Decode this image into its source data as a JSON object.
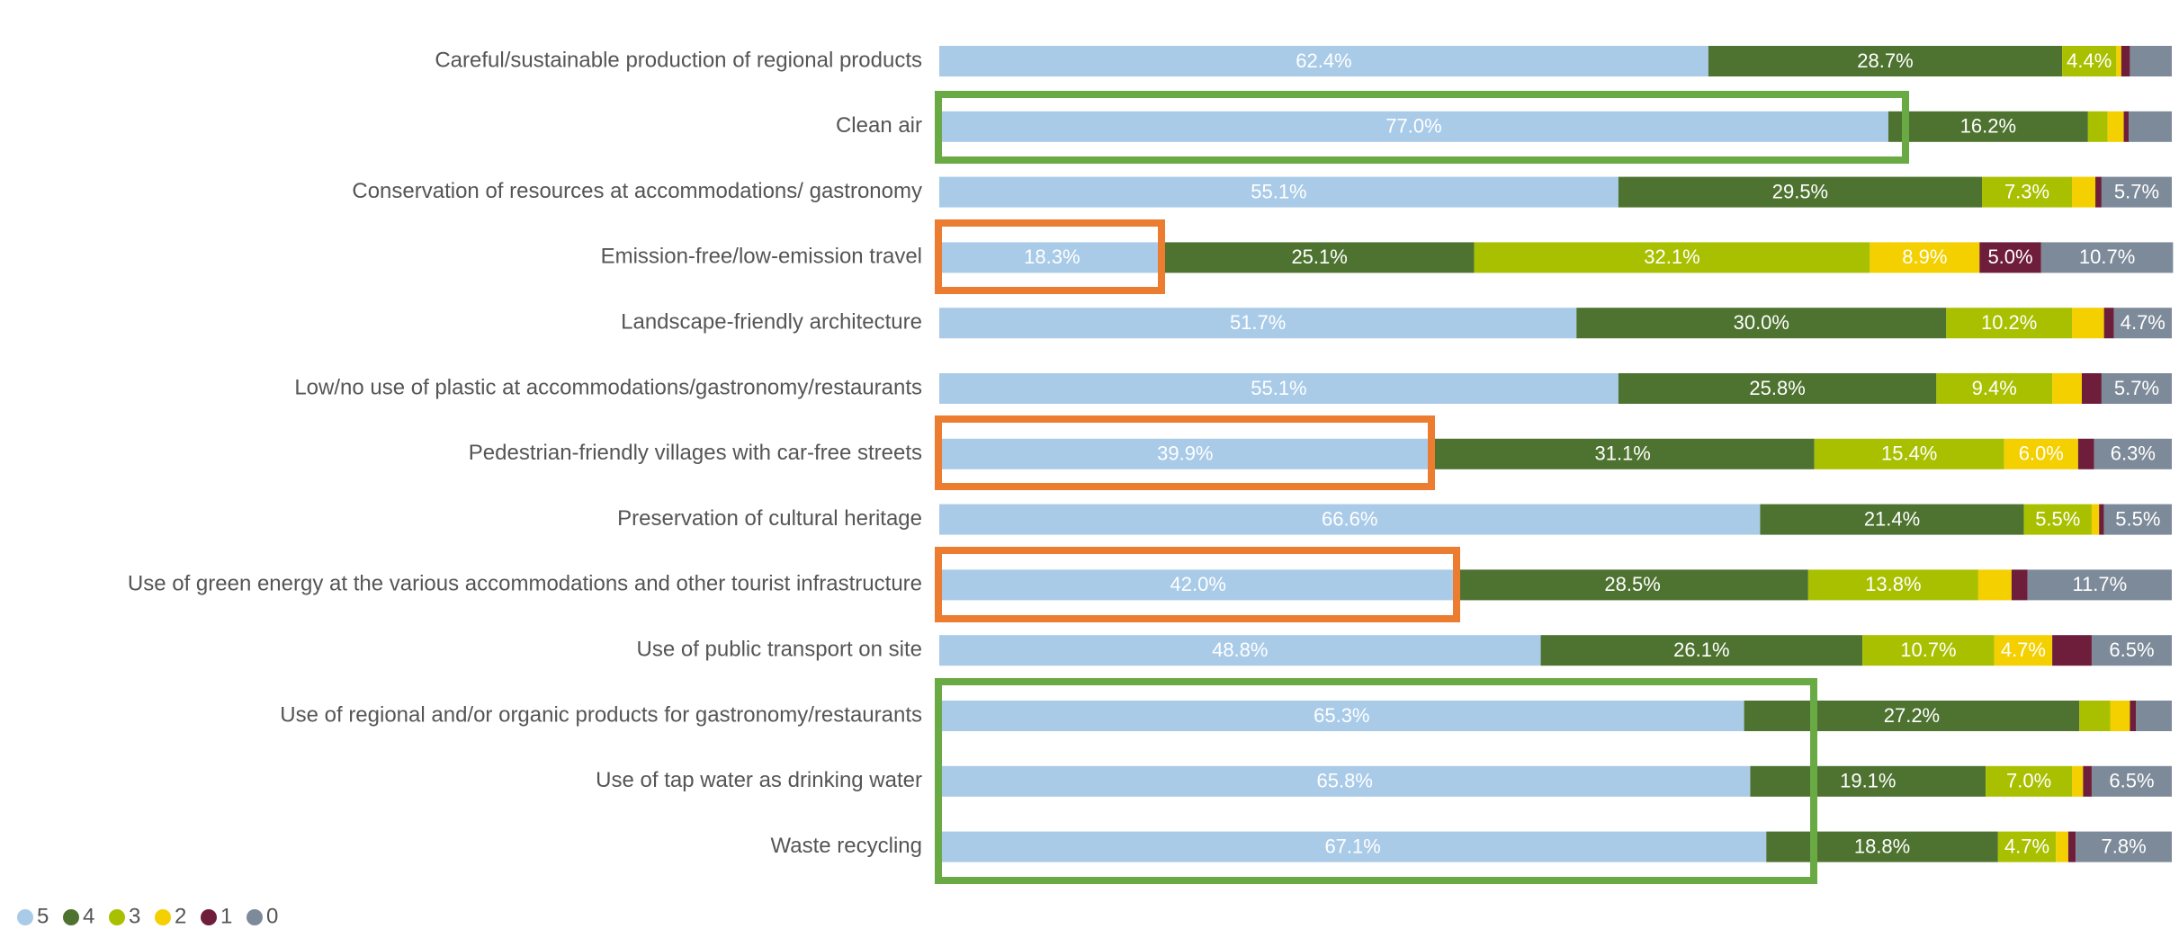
{
  "chart_data": {
    "type": "stacked-bar-horizontal",
    "categories": [
      "Careful/sustainable production of regional products",
      "Clean air",
      "Conservation of resources at accommodations/ gastronomy",
      "Emission-free/low-emission travel",
      "Landscape-friendly architecture",
      "Low/no use of plastic at accommodations/gastronomy/restaurants",
      "Pedestrian-friendly villages with car-free streets",
      "Preservation of cultural heritage",
      "Use of green energy at the various accommodations and other tourist infrastructure",
      "Use of public transport on site",
      "Use of regional and/or organic products for gastronomy/restaurants",
      "Use of tap water as drinking water",
      "Waste recycling"
    ],
    "xlim": [
      0,
      100
    ],
    "series": [
      {
        "name": "5",
        "color": "#a9cbe8",
        "values": [
          62.4,
          77.0,
          55.1,
          18.3,
          51.7,
          55.1,
          39.9,
          66.6,
          42.0,
          48.8,
          65.3,
          65.8,
          67.1
        ],
        "value_labels": [
          "62.4%",
          "77.0%",
          "55.1%",
          "18.3%",
          "51.7%",
          "55.1%",
          "39.9%",
          "66.6%",
          "42.0%",
          "48.8%",
          "65.3%",
          "65.8%",
          "67.1%"
        ]
      },
      {
        "name": "4",
        "color": "#4e7330",
        "values": [
          28.7,
          16.2,
          29.5,
          25.1,
          30.0,
          25.8,
          31.1,
          21.4,
          28.5,
          26.1,
          27.2,
          19.1,
          18.8
        ],
        "value_labels": [
          "28.7%",
          "16.2%",
          "29.5%",
          "25.1%",
          "30.0%",
          "25.8%",
          "31.1%",
          "21.4%",
          "28.5%",
          "26.1%",
          "27.2%",
          "19.1%",
          "18.8%"
        ]
      },
      {
        "name": "3",
        "color": "#a9c000",
        "values": [
          4.4,
          1.6,
          7.3,
          32.1,
          10.2,
          9.4,
          15.4,
          5.5,
          13.8,
          10.7,
          2.5,
          7.0,
          4.7
        ],
        "value_labels": [
          "4.4%",
          null,
          "7.3%",
          "32.1%",
          "10.2%",
          "9.4%",
          "15.4%",
          "5.5%",
          "13.8%",
          "10.7%",
          null,
          "7.0%",
          "4.7%"
        ]
      },
      {
        "name": "2",
        "color": "#f4d000",
        "values": [
          0.4,
          1.3,
          1.9,
          8.9,
          2.6,
          2.4,
          6.0,
          0.6,
          2.7,
          4.7,
          1.6,
          0.9,
          1.0
        ],
        "value_labels": [
          null,
          null,
          null,
          "8.9%",
          null,
          null,
          "6.0%",
          null,
          null,
          "4.7%",
          null,
          null,
          null
        ]
      },
      {
        "name": "1",
        "color": "#6e1e3a",
        "values": [
          0.7,
          0.4,
          0.5,
          5.0,
          0.8,
          1.6,
          1.3,
          0.4,
          1.3,
          3.2,
          0.5,
          0.7,
          0.6
        ],
        "value_labels": [
          null,
          null,
          null,
          "5.0%",
          null,
          null,
          null,
          null,
          null,
          null,
          null,
          null,
          null
        ]
      },
      {
        "name": "0",
        "color": "#7d8a99",
        "values": [
          3.4,
          3.5,
          5.7,
          10.7,
          4.7,
          5.7,
          6.3,
          5.5,
          11.7,
          6.5,
          2.9,
          6.5,
          7.8
        ],
        "value_labels": [
          null,
          null,
          "5.7%",
          "10.7%",
          "4.7%",
          "5.7%",
          "6.3%",
          "5.5%",
          "11.7%",
          "6.5%",
          null,
          "6.5%",
          "7.8%"
        ]
      }
    ]
  }
}
